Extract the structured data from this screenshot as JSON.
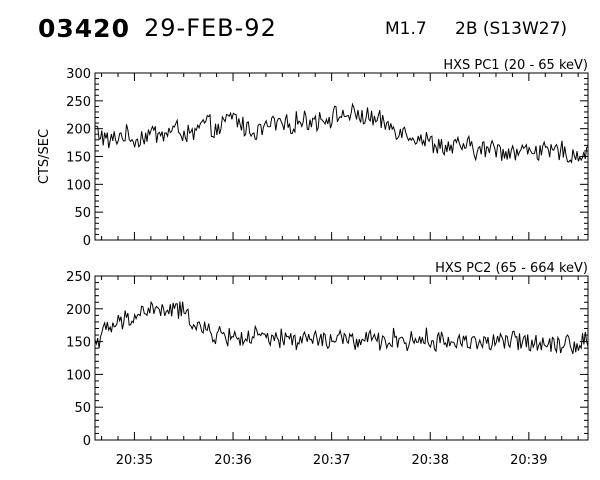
{
  "header": {
    "event_id": "03420",
    "date": "29-FEB-92",
    "flare_class": "M1.7",
    "flare_importance": "2B (S13W27)"
  },
  "chart_data": [
    {
      "type": "line",
      "title": "HXS PC1 (20 - 65 keV)",
      "ylabel": "CTS/SEC",
      "xlabel": "",
      "ylim": [
        0,
        300
      ],
      "yticks": [
        0,
        50,
        100,
        150,
        200,
        250,
        300
      ],
      "xlim": [
        "20:34:36",
        "20:39:36"
      ],
      "xticks": [
        "20:35",
        "20:36",
        "20:37",
        "20:38",
        "20:39"
      ],
      "grid": false,
      "series": [
        {
          "values": [
            200,
            175,
            190,
            180,
            192,
            190,
            200,
            185,
            210,
            195,
            225,
            200,
            195,
            210,
            205,
            215,
            215,
            220,
            225,
            225,
            220,
            210,
            200,
            190,
            180,
            170,
            165,
            170,
            160,
            165,
            160,
            158,
            165,
            155,
            160,
            150,
            160
          ]
        }
      ]
    },
    {
      "type": "line",
      "title": "HXS PC2 (65 - 664 keV)",
      "ylabel": "",
      "xlabel": "",
      "ylim": [
        0,
        250
      ],
      "yticks": [
        0,
        50,
        100,
        150,
        200,
        250
      ],
      "xlim": [
        "20:34:36",
        "20:39:36"
      ],
      "xticks": [
        "20:35",
        "20:36",
        "20:37",
        "20:38",
        "20:39"
      ],
      "grid": false,
      "series": [
        {
          "values": [
            150,
            170,
            180,
            190,
            200,
            195,
            200,
            185,
            165,
            160,
            158,
            155,
            158,
            150,
            155,
            152,
            155,
            150,
            155,
            150,
            152,
            150,
            155,
            150,
            155,
            150,
            150,
            152,
            150,
            148,
            150,
            152,
            150,
            148,
            150,
            145,
            155
          ]
        }
      ]
    }
  ]
}
